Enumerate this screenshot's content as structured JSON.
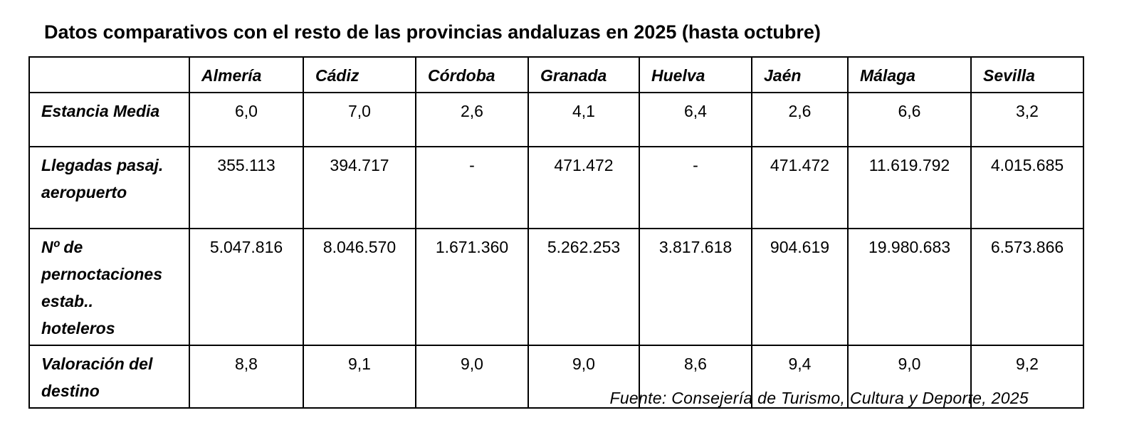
{
  "title": "Datos comparativos con el resto de las provincias andaluzas en 2025 (hasta octubre)",
  "table": {
    "header": [
      "Almería",
      "Cádiz",
      "Córdoba",
      "Granada",
      "Huelva",
      "Jaén",
      "Málaga",
      "Sevilla"
    ],
    "rows": [
      {
        "label": "Estancia Media",
        "values": [
          "6,0",
          "7,0",
          "2,6",
          "4,1",
          "6,4",
          "2,6",
          "6,6",
          "3,2"
        ]
      },
      {
        "label": "Llegadas pasaj. aeropuerto",
        "values": [
          "355.113",
          "394.717",
          "-",
          "471.472",
          "-",
          "471.472",
          "11.619.792",
          "4.015.685"
        ]
      },
      {
        "label": "Nº de pernoctaciones estab.. hoteleros",
        "values": [
          "5.047.816",
          "8.046.570",
          "1.671.360",
          "5.262.253",
          "3.817.618",
          "904.619",
          "19.980.683",
          "6.573.866"
        ]
      },
      {
        "label": "Valoración del destino",
        "values": [
          "8,8",
          "9,1",
          "9,0",
          "9,0",
          "8,6",
          "9,4",
          "9,0",
          "9,2"
        ]
      }
    ]
  },
  "source": "Fuente:  Consejería de Turismo,  Cultura y Deporte,  2025"
}
